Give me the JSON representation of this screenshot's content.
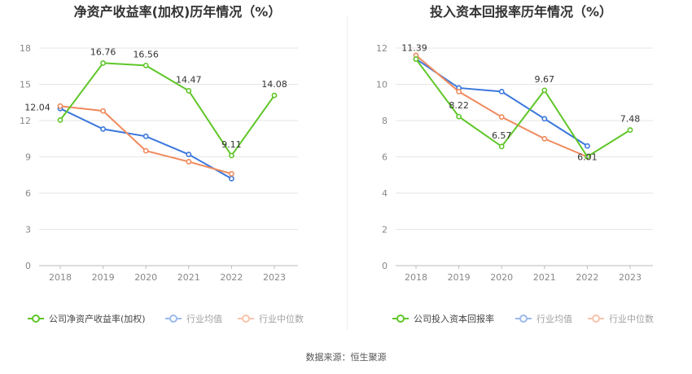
{
  "colors": {
    "company": "#5fc628",
    "industry_avg": "#3b78dd",
    "industry_median": "#f08a5d",
    "grid": "#e6e6e6",
    "axis": "#bbbbbb"
  },
  "chart_data": [
    {
      "type": "line",
      "title": "净资产收益率(加权)历年情况（%）",
      "categories": [
        "2018",
        "2019",
        "2020",
        "2021",
        "2022",
        "2023"
      ],
      "ylim": [
        0,
        18
      ],
      "yticks": [
        0,
        3,
        6,
        9,
        12,
        15,
        18
      ],
      "series": [
        {
          "name": "公司净资产收益率(加权)",
          "key": "company",
          "values": [
            12.04,
            16.76,
            16.56,
            14.47,
            9.11,
            14.08
          ],
          "labels": [
            "12.04",
            "16.76",
            "16.56",
            "14.47",
            "9.11",
            "14.08"
          ]
        },
        {
          "name": "行业均值",
          "key": "industry_avg",
          "values": [
            13.0,
            11.3,
            10.7,
            9.2,
            7.2,
            null
          ]
        },
        {
          "name": "行业中位数",
          "key": "industry_median",
          "values": [
            13.2,
            12.8,
            9.5,
            8.6,
            7.6,
            null
          ]
        }
      ],
      "legend": "bottom"
    },
    {
      "type": "line",
      "title": "投入资本回报率历年情况（%）",
      "categories": [
        "2018",
        "2019",
        "2020",
        "2021",
        "2022",
        "2023"
      ],
      "ylim": [
        0,
        12
      ],
      "yticks": [
        0,
        2,
        4,
        6,
        8,
        10,
        12
      ],
      "series": [
        {
          "name": "公司投入资本回报率",
          "key": "company",
          "values": [
            11.39,
            8.22,
            6.57,
            9.67,
            6.01,
            7.48
          ],
          "labels": [
            "11.39",
            "8.22",
            "6.57",
            "9.67",
            "6.01",
            "7.48"
          ]
        },
        {
          "name": "行业均值",
          "key": "industry_avg",
          "values": [
            11.4,
            9.8,
            9.6,
            8.1,
            6.6,
            null
          ]
        },
        {
          "name": "行业中位数",
          "key": "industry_median",
          "values": [
            11.6,
            9.6,
            8.2,
            7.0,
            6.0,
            null
          ]
        }
      ],
      "legend": "bottom"
    }
  ],
  "footer": {
    "source": "数据来源：恒生聚源"
  }
}
